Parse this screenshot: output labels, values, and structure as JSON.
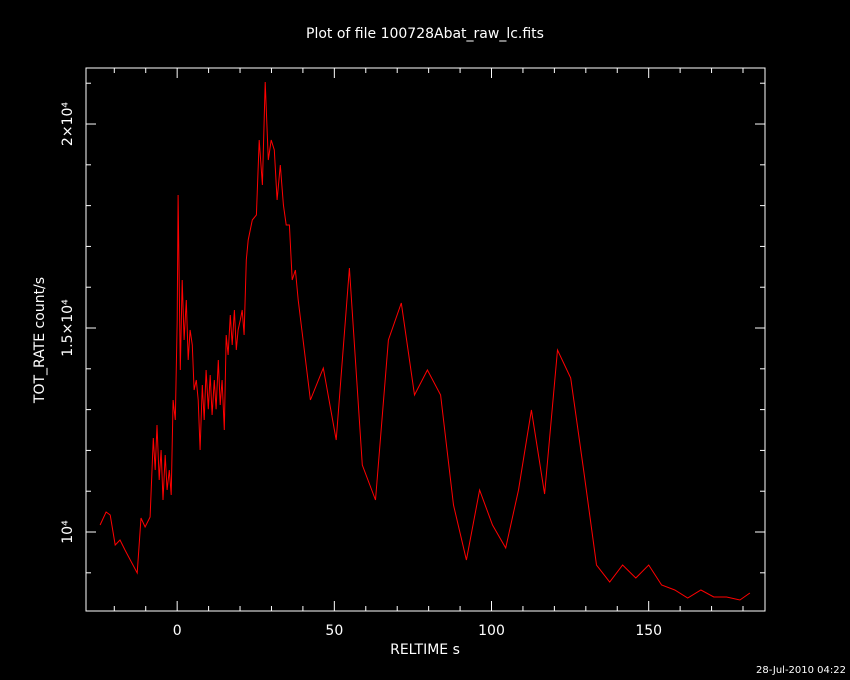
{
  "chart_data": {
    "type": "line",
    "title": "Plot of file 100728Abat_raw_lc.fits",
    "x_label": "RELTIME  s",
    "y_label": "TOT_RATE  count/s",
    "footer": "28-Jul-2010 04:22",
    "color": "#ff0000",
    "xlim": [
      -29,
      187
    ],
    "ylim": [
      8064,
      21373
    ],
    "xticks": [
      0,
      50,
      100,
      150
    ],
    "xminor_ticks": [
      -20,
      -10,
      10,
      20,
      30,
      40,
      60,
      70,
      80,
      90,
      110,
      120,
      130,
      140,
      160,
      170,
      180
    ],
    "yticks": [
      {
        "value": 10000,
        "label": "10⁴"
      },
      {
        "value": 15000,
        "label": "1.5×10⁴"
      },
      {
        "value": 20000,
        "label": "2×10⁴"
      }
    ],
    "yminor_ticks": [
      9000,
      11000,
      12000,
      13000,
      14000,
      16000,
      17000,
      18000,
      19000,
      21000
    ],
    "x": [
      -24.5,
      -22.6,
      -21.3,
      -19.7,
      -18.2,
      -16.6,
      -12.7,
      -11.5,
      -10.2,
      -8.6,
      -7.6,
      -7.0,
      -6.4,
      -5.7,
      -5.1,
      -4.5,
      -3.8,
      -3.2,
      -2.5,
      -1.9,
      -1.3,
      -0.6,
      0,
      0.3,
      1,
      1.6,
      2.2,
      2.9,
      3.5,
      4.1,
      4.8,
      5.4,
      6.1,
      6.7,
      7.3,
      8.0,
      8.6,
      9.2,
      9.9,
      10.5,
      11.1,
      11.8,
      12.4,
      13.1,
      13.7,
      14.3,
      15.0,
      15.6,
      16.2,
      16.9,
      17.5,
      18.2,
      18.8,
      19.4,
      20.1,
      20.7,
      21.3,
      22.0,
      22.6,
      23.9,
      25.2,
      26.1,
      27.1,
      28.0,
      29.0,
      29.9,
      30.9,
      31.8,
      32.8,
      33.8,
      34.7,
      35.7,
      36.6,
      37.6,
      38.5,
      42.4,
      46.5,
      50.6,
      54.8,
      58.9,
      63.1,
      67.2,
      71.3,
      75.5,
      79.6,
      83.8,
      87.9,
      92.0,
      96.2,
      100.3,
      104.5,
      108.6,
      112.7,
      116.9,
      121.0,
      125.2,
      129.3,
      133.4,
      137.6,
      141.7,
      145.9,
      150,
      154.1,
      158.3,
      162.4,
      166.6,
      170.7,
      174.8,
      179,
      182.2
    ],
    "values": [
      10172,
      10490,
      10417,
      9681,
      9804,
      9559,
      8995,
      10343,
      10123,
      10368,
      12304,
      11520,
      12623,
      11275,
      12010,
      10784,
      11887,
      11029,
      11520,
      10907,
      13235,
      12745,
      15196,
      18260,
      13971,
      16177,
      14706,
      15686,
      14216,
      14951,
      14583,
      13480,
      13725,
      13235,
      12010,
      13603,
      12745,
      13971,
      13010,
      13848,
      12868,
      13725,
      13010,
      14216,
      13113,
      13725,
      12500,
      14828,
      14338,
      15319,
      14583,
      15441,
      14461,
      14951,
      15196,
      15441,
      14828,
      16667,
      17157,
      17647,
      17770,
      19608,
      18505,
      21029,
      19118,
      19608,
      19363,
      18137,
      18995,
      18015,
      17525,
      17525,
      16177,
      16422,
      15686,
      13235,
      14020,
      12255,
      16471,
      11642,
      10784,
      14706,
      15613,
      13358,
      13971,
      13358,
      10662,
      9314,
      11029,
      10172,
      9608,
      11029,
      12990,
      10931,
      14461,
      13775,
      11520,
      9191,
      8775,
      9191,
      8873,
      9191,
      8701,
      8578,
      8382,
      8578,
      8407,
      8407,
      8333,
      8505
    ]
  }
}
